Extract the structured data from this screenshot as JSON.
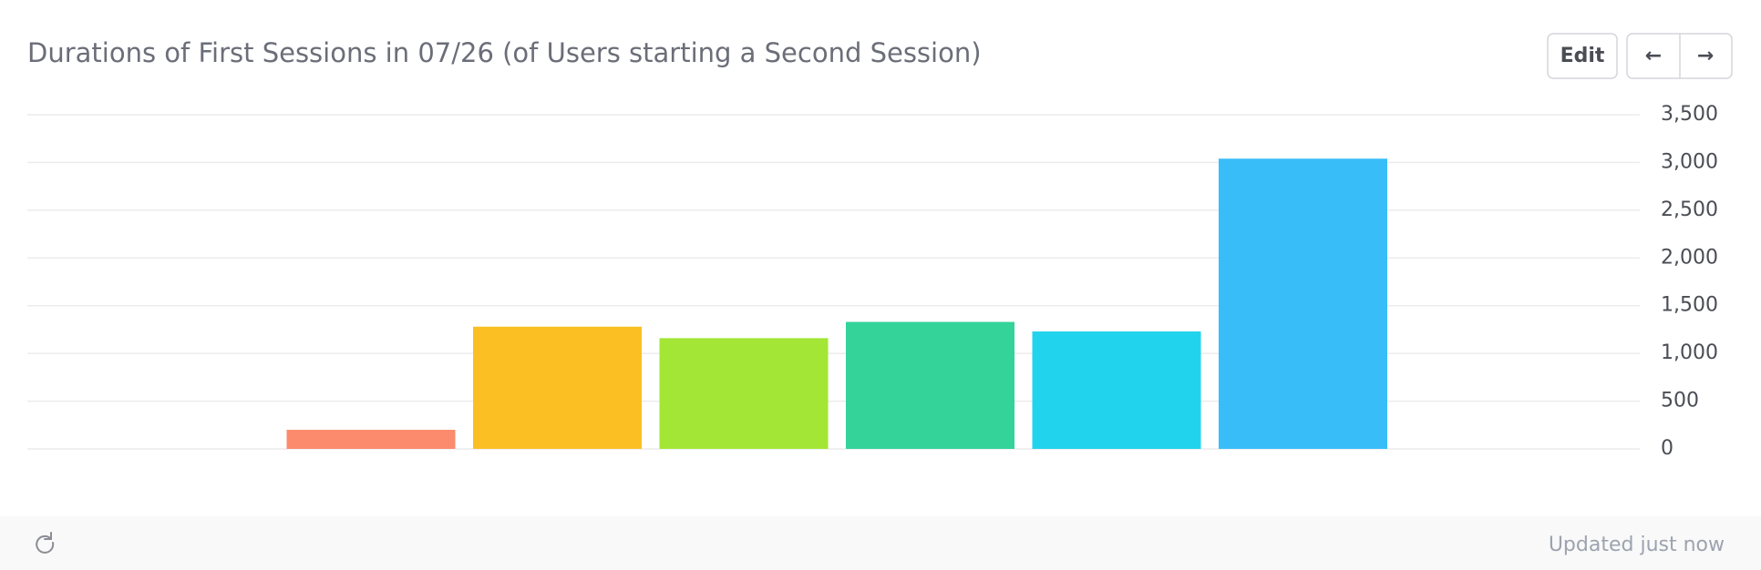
{
  "header": {
    "title": "Durations of First Sessions in 07/26 (of Users starting a Second Session)",
    "edit": "Edit",
    "prev": "←",
    "next": "→"
  },
  "chart_data": {
    "type": "bar",
    "categories": [
      null,
      null,
      null,
      null,
      null,
      null
    ],
    "values": [
      200,
      1280,
      1160,
      1330,
      1230,
      3040
    ],
    "colors": [
      "#fb8b6c",
      "#fbbf24",
      "#a3e635",
      "#34d399",
      "#22d3ee",
      "#38bdf8"
    ],
    "ylim": [
      0,
      3500
    ],
    "yticks": [
      {
        "value": 0,
        "label": "0"
      },
      {
        "value": 500,
        "label": "500"
      },
      {
        "value": 1000,
        "label": "1,000"
      },
      {
        "value": 1500,
        "label": "1,500"
      },
      {
        "value": 2000,
        "label": "2,000"
      },
      {
        "value": 2500,
        "label": "2,500"
      },
      {
        "value": 3000,
        "label": "3,000"
      },
      {
        "value": 3500,
        "label": "3,500"
      }
    ],
    "grid": true
  },
  "footer": {
    "status": "Updated just now"
  }
}
